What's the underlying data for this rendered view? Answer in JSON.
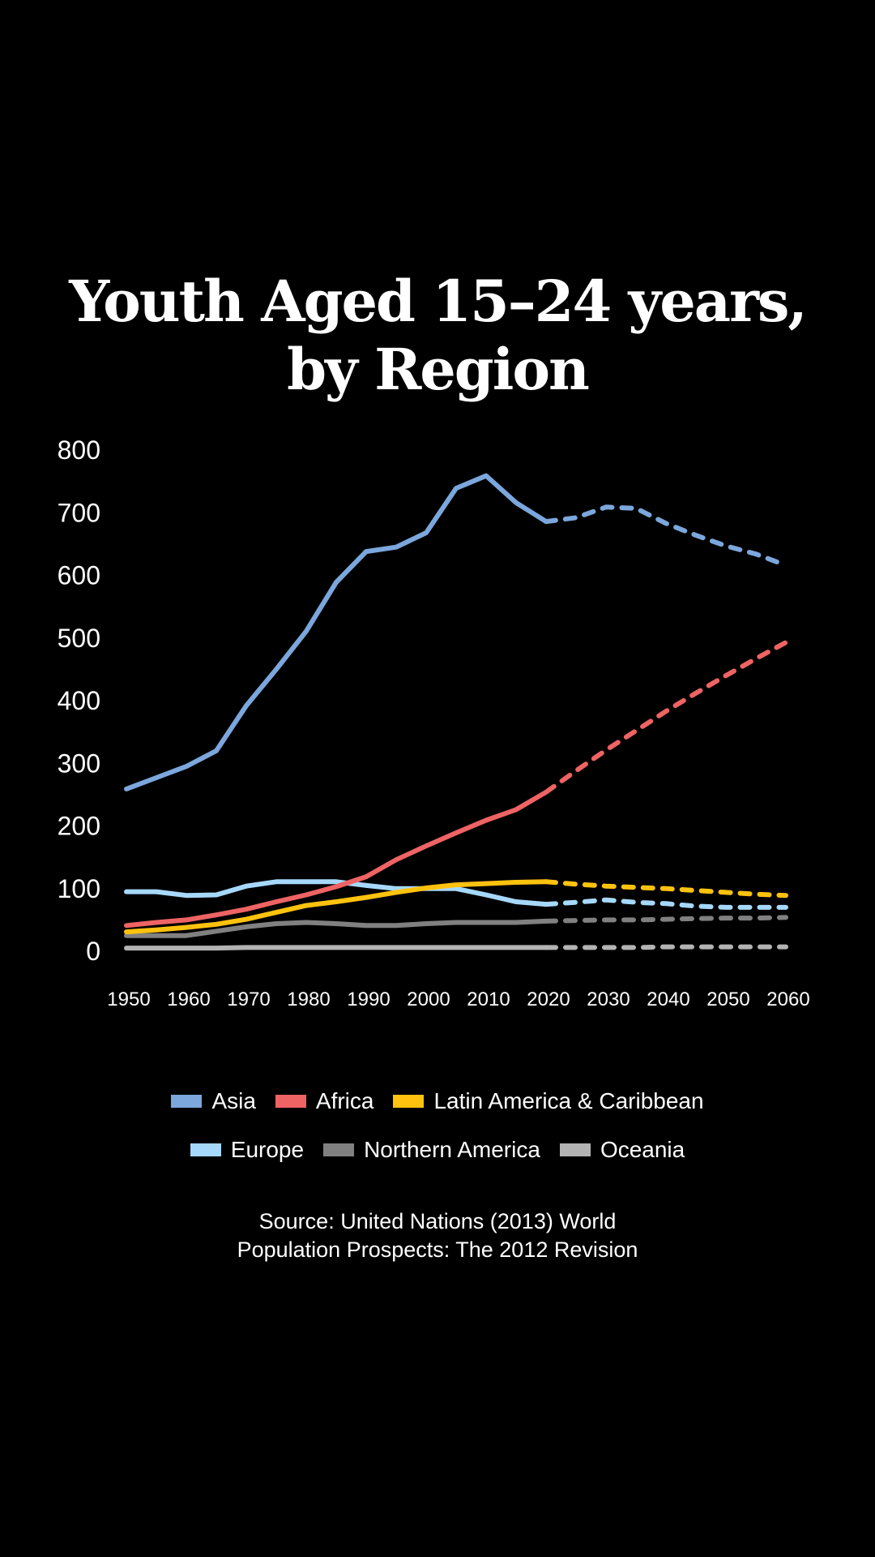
{
  "chart_data": {
    "type": "line",
    "title": [
      "Youth Aged 15–24 years,",
      "by Region"
    ],
    "xlabel": "",
    "ylabel": "",
    "ylim": [
      0,
      800
    ],
    "yticks": [
      "0",
      "100",
      "200",
      "300",
      "400",
      "500",
      "600",
      "700",
      "800"
    ],
    "xlim": [
      1950,
      2060
    ],
    "xticks": [
      "1950",
      "1960",
      "1970",
      "1980",
      "1990",
      "2000",
      "2010",
      "2020",
      "2030",
      "2040",
      "2050",
      "2060"
    ],
    "grid": false,
    "legend_position": "bottom",
    "projection_start": 2020,
    "projection_style": "dashed",
    "x": [
      1950,
      1955,
      1960,
      1965,
      1970,
      1975,
      1980,
      1985,
      1990,
      1995,
      2000,
      2005,
      2010,
      2015,
      2020,
      2025,
      2030,
      2035,
      2040,
      2045,
      2050,
      2055,
      2060
    ],
    "series": [
      {
        "name": "Asia",
        "color": "#7ba7dc",
        "values": [
          259,
          277,
          295,
          320,
          392,
          450,
          511,
          589,
          638,
          645,
          668,
          739,
          759,
          716,
          686,
          692,
          709,
          707,
          683,
          664,
          647,
          634,
          616
        ]
      },
      {
        "name": "Africa",
        "color": "#ee6363",
        "values": [
          41,
          46,
          50,
          58,
          67,
          79,
          90,
          103,
          119,
          146,
          168,
          189,
          209,
          226,
          254,
          288,
          321,
          352,
          383,
          412,
          440,
          467,
          493
        ]
      },
      {
        "name": "Latin America & Caribbean",
        "color": "#ffc20e",
        "values": [
          31,
          34,
          38,
          43,
          51,
          62,
          73,
          79,
          86,
          94,
          101,
          106,
          108,
          110,
          111,
          107,
          104,
          102,
          100,
          97,
          94,
          91,
          89
        ]
      },
      {
        "name": "Europe",
        "color": "#a6d8fb",
        "values": [
          95,
          95,
          89,
          90,
          104,
          111,
          111,
          111,
          105,
          100,
          100,
          100,
          90,
          79,
          75,
          78,
          82,
          78,
          76,
          72,
          70,
          70,
          70
        ]
      },
      {
        "name": "Northern America",
        "color": "#808080",
        "values": [
          25,
          25,
          25,
          32,
          39,
          44,
          46,
          44,
          41,
          41,
          44,
          46,
          46,
          46,
          48,
          49,
          50,
          50,
          51,
          52,
          53,
          53,
          54
        ]
      },
      {
        "name": "Oceania",
        "color": "#b3b3b3",
        "values": [
          5,
          5,
          5,
          5,
          6,
          6,
          6,
          6,
          6,
          6,
          6,
          6,
          6,
          6,
          6,
          6,
          6,
          6,
          7,
          7,
          7,
          7,
          7
        ]
      }
    ]
  },
  "legend": {
    "rows": [
      [
        {
          "label": "Asia",
          "color": "#7ba7dc"
        },
        {
          "label": "Africa",
          "color": "#ee6363"
        },
        {
          "label": "Latin America & Caribbean",
          "color": "#ffc20e"
        }
      ],
      [
        {
          "label": "Europe",
          "color": "#a6d8fb"
        },
        {
          "label": "Northern America",
          "color": "#808080"
        },
        {
          "label": "Oceania",
          "color": "#b3b3b3"
        }
      ]
    ]
  },
  "source": [
    "Source: United Nations (2013) World",
    "Population Prospects: The 2012 Revision"
  ]
}
